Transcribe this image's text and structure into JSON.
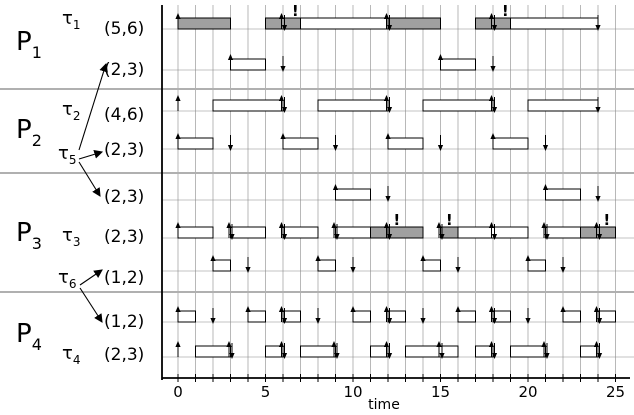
{
  "processors": [
    {
      "label": "P",
      "sub": "1"
    },
    {
      "label": "P",
      "sub": "2"
    },
    {
      "label": "P",
      "sub": "3"
    },
    {
      "label": "P",
      "sub": "4"
    }
  ],
  "tasks": [
    {
      "name": "τ",
      "sub": "1",
      "params": "(5,6)"
    },
    {
      "name": "",
      "sub": "",
      "params": "(2,3)"
    },
    {
      "name": "τ",
      "sub": "2",
      "params": "(4,6)"
    },
    {
      "name": "",
      "sub": "",
      "params": "(2,3)"
    },
    {
      "name": "",
      "sub": "",
      "params": "(2,3)"
    },
    {
      "name": "τ",
      "sub": "3",
      "params": "(2,3)"
    },
    {
      "name": "",
      "sub": "",
      "params": "(1,2)"
    },
    {
      "name": "",
      "sub": "",
      "params": "(1,2)"
    },
    {
      "name": "τ",
      "sub": "4",
      "params": "(2,3)"
    }
  ],
  "split_tasks": [
    {
      "name": "τ",
      "sub": "5"
    },
    {
      "name": "τ",
      "sub": "6"
    }
  ],
  "axis": {
    "label": "time",
    "ticks": [
      0,
      5,
      10,
      15,
      20,
      25
    ],
    "range": [
      0,
      25
    ]
  },
  "miss_marker": "!",
  "colors": {
    "exec_fill": "#ffffff",
    "miss_fill": "#a0a0a0",
    "grid": "#888888",
    "separator": "#b0b0b0"
  },
  "rows": [
    {
      "exec": [
        [
          0,
          3,
          "g"
        ],
        [
          5,
          7,
          "g"
        ],
        [
          7,
          12,
          "w"
        ],
        [
          12,
          15,
          "g"
        ],
        [
          17,
          19,
          "g"
        ],
        [
          19,
          24,
          "w"
        ]
      ],
      "releases": [
        0,
        6,
        12,
        18
      ],
      "deadlines": [
        6,
        12,
        18,
        24
      ],
      "misses": [
        6.7,
        18.7
      ]
    },
    {
      "exec": [
        [
          3,
          5,
          "w"
        ],
        [
          15,
          17,
          "w"
        ]
      ],
      "releases": [
        3,
        15
      ],
      "deadlines": [
        6,
        18
      ],
      "misses": []
    },
    {
      "exec": [
        [
          2,
          6,
          "w"
        ],
        [
          8,
          12,
          "w"
        ],
        [
          14,
          18,
          "w"
        ],
        [
          20,
          24,
          "w"
        ]
      ],
      "releases": [
        0,
        6,
        12,
        18
      ],
      "deadlines": [
        6,
        12,
        18,
        24
      ],
      "misses": []
    },
    {
      "exec": [
        [
          0,
          2,
          "w"
        ],
        [
          6,
          8,
          "w"
        ],
        [
          12,
          14,
          "w"
        ],
        [
          18,
          20,
          "w"
        ]
      ],
      "releases": [
        0,
        6,
        12,
        18
      ],
      "deadlines": [
        3,
        9,
        15,
        21
      ],
      "misses": []
    },
    {
      "exec": [
        [
          9,
          11,
          "w"
        ],
        [
          21,
          23,
          "w"
        ]
      ],
      "releases": [
        9,
        21
      ],
      "deadlines": [
        12,
        24
      ],
      "misses": []
    },
    {
      "exec": [
        [
          0,
          2,
          "w"
        ],
        [
          3,
          5,
          "w"
        ],
        [
          6,
          8,
          "w"
        ],
        [
          9,
          11,
          "w"
        ],
        [
          11,
          12,
          "g"
        ],
        [
          12,
          14,
          "g"
        ],
        [
          15,
          16,
          "g"
        ],
        [
          16,
          20,
          "w"
        ],
        [
          21,
          23,
          "w"
        ],
        [
          23,
          25,
          "g"
        ]
      ],
      "releases": [
        0,
        3,
        6,
        9,
        12,
        15,
        18,
        21,
        24
      ],
      "deadlines": [
        3,
        6,
        9,
        12,
        15,
        18,
        21,
        24
      ],
      "misses": [
        12.5,
        15.5,
        24.5
      ]
    },
    {
      "exec": [
        [
          2,
          3,
          "w"
        ],
        [
          8,
          9,
          "w"
        ],
        [
          14,
          15,
          "w"
        ],
        [
          20,
          21,
          "w"
        ]
      ],
      "releases": [
        2,
        8,
        14,
        20
      ],
      "deadlines": [
        4,
        10,
        16,
        22
      ],
      "misses": []
    },
    {
      "exec": [
        [
          0,
          1,
          "w"
        ],
        [
          4,
          5,
          "w"
        ],
        [
          6,
          7,
          "w"
        ],
        [
          10,
          11,
          "w"
        ],
        [
          12,
          13,
          "w"
        ],
        [
          16,
          17,
          "w"
        ],
        [
          18,
          19,
          "w"
        ],
        [
          22,
          23,
          "w"
        ],
        [
          24,
          25,
          "w"
        ]
      ],
      "releases": [
        0,
        4,
        6,
        10,
        12,
        16,
        18,
        22,
        24
      ],
      "deadlines": [
        2,
        6,
        8,
        12,
        14,
        18,
        20,
        24
      ],
      "misses": []
    },
    {
      "exec": [
        [
          1,
          3,
          "w"
        ],
        [
          5,
          6,
          "w"
        ],
        [
          7,
          9,
          "w"
        ],
        [
          11,
          12,
          "w"
        ],
        [
          13,
          16,
          "w"
        ],
        [
          17,
          18,
          "w"
        ],
        [
          19,
          21,
          "w"
        ],
        [
          23,
          24,
          "w"
        ]
      ],
      "releases": [
        0,
        3,
        6,
        9,
        12,
        15,
        18,
        21,
        24
      ],
      "deadlines": [
        3,
        6,
        9,
        12,
        15,
        18,
        21,
        24
      ],
      "misses": []
    }
  ]
}
